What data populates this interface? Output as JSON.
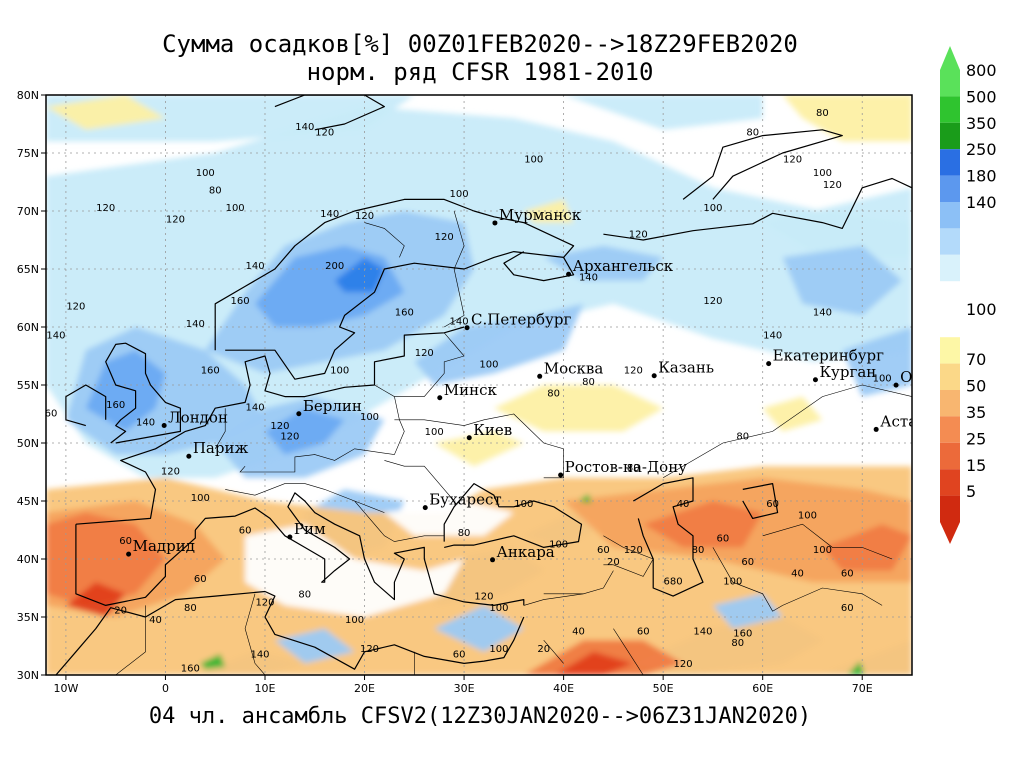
{
  "title": {
    "line1": "Сумма осадков[%] 00Z01FEB2020-->18Z29FEB2020",
    "line2": "норм. ряд CFSR 1981-2010"
  },
  "footer": "04 чл. ансамбль CFSV2(12Z30JAN2020-->06Z31JAN2020)",
  "map": {
    "lon_range": [
      -12,
      75
    ],
    "lat_range": [
      30,
      80
    ],
    "lon_ticks": [
      {
        "value": -10,
        "label": "10W"
      },
      {
        "value": 0,
        "label": "0"
      },
      {
        "value": 10,
        "label": "10E"
      },
      {
        "value": 20,
        "label": "20E"
      },
      {
        "value": 30,
        "label": "30E"
      },
      {
        "value": 40,
        "label": "40E"
      },
      {
        "value": 50,
        "label": "50E"
      },
      {
        "value": 60,
        "label": "60E"
      },
      {
        "value": 70,
        "label": "70E"
      }
    ],
    "lat_ticks": [
      {
        "value": 30,
        "label": "30N"
      },
      {
        "value": 35,
        "label": "35N"
      },
      {
        "value": 40,
        "label": "40N"
      },
      {
        "value": 45,
        "label": "45N"
      },
      {
        "value": 50,
        "label": "50N"
      },
      {
        "value": 55,
        "label": "55N"
      },
      {
        "value": 60,
        "label": "60N"
      },
      {
        "value": 65,
        "label": "65N"
      },
      {
        "value": 70,
        "label": "70N"
      },
      {
        "value": 75,
        "label": "75N"
      },
      {
        "value": 80,
        "label": "80N"
      }
    ],
    "cities": [
      {
        "name": "Мурманск",
        "lon": 33.1,
        "lat": 68.97
      },
      {
        "name": "Архангельск",
        "lon": 40.5,
        "lat": 64.55
      },
      {
        "name": "С.Петербург",
        "lon": 30.3,
        "lat": 59.94
      },
      {
        "name": "Москва",
        "lon": 37.6,
        "lat": 55.75
      },
      {
        "name": "Казань",
        "lon": 49.1,
        "lat": 55.8
      },
      {
        "name": "Екатеринбург",
        "lon": 60.6,
        "lat": 56.84
      },
      {
        "name": "Курган",
        "lon": 65.3,
        "lat": 55.45
      },
      {
        "name": "Омск",
        "lon": 73.4,
        "lat": 54.99
      },
      {
        "name": "Астана",
        "lon": 71.4,
        "lat": 51.17
      },
      {
        "name": "Минск",
        "lon": 27.56,
        "lat": 53.9
      },
      {
        "name": "Берлин",
        "lon": 13.4,
        "lat": 52.52
      },
      {
        "name": "Лондон",
        "lon": -0.13,
        "lat": 51.51
      },
      {
        "name": "Париж",
        "lon": 2.35,
        "lat": 48.86
      },
      {
        "name": "Киев",
        "lon": 30.52,
        "lat": 50.45
      },
      {
        "name": "Ростов-на-Дону",
        "lon": 39.7,
        "lat": 47.24
      },
      {
        "name": "Бухарест",
        "lon": 26.1,
        "lat": 44.43
      },
      {
        "name": "Рим",
        "lon": 12.5,
        "lat": 41.9
      },
      {
        "name": "Мадрид",
        "lon": -3.7,
        "lat": 40.42
      },
      {
        "name": "Анкара",
        "lon": 32.86,
        "lat": 39.93
      }
    ],
    "contour_labels": [
      {
        "text": "140",
        "lon": 14,
        "lat": 77
      },
      {
        "text": "120",
        "lon": 16,
        "lat": 76.5
      },
      {
        "text": "100",
        "lon": 4,
        "lat": 73
      },
      {
        "text": "80",
        "lon": 5,
        "lat": 71.5
      },
      {
        "text": "100",
        "lon": 7,
        "lat": 70
      },
      {
        "text": "120",
        "lon": -6,
        "lat": 70
      },
      {
        "text": "120",
        "lon": 1,
        "lat": 69
      },
      {
        "text": "100",
        "lon": 29.5,
        "lat": 71.2
      },
      {
        "text": "140",
        "lon": 16.5,
        "lat": 69.5
      },
      {
        "text": "120",
        "lon": 20,
        "lat": 69.3
      },
      {
        "text": "100",
        "lon": 37,
        "lat": 74.2
      },
      {
        "text": "80",
        "lon": 66,
        "lat": 78.2
      },
      {
        "text": "80",
        "lon": 59,
        "lat": 76.5
      },
      {
        "text": "120",
        "lon": 63,
        "lat": 74.2
      },
      {
        "text": "100",
        "lon": 66,
        "lat": 73
      },
      {
        "text": "120",
        "lon": 67,
        "lat": 72
      },
      {
        "text": "100",
        "lon": 55,
        "lat": 70
      },
      {
        "text": "120",
        "lon": 47.5,
        "lat": 67.7
      },
      {
        "text": "140",
        "lon": 9,
        "lat": 65
      },
      {
        "text": "200",
        "lon": 17,
        "lat": 65
      },
      {
        "text": "160",
        "lon": 7.5,
        "lat": 62
      },
      {
        "text": "120",
        "lon": -9,
        "lat": 61.5
      },
      {
        "text": "140",
        "lon": 3,
        "lat": 60
      },
      {
        "text": "140",
        "lon": -11,
        "lat": 59
      },
      {
        "text": "160",
        "lon": 24,
        "lat": 61
      },
      {
        "text": "140",
        "lon": 29.5,
        "lat": 60.2
      },
      {
        "text": "140",
        "lon": 42.5,
        "lat": 64
      },
      {
        "text": "120",
        "lon": 28,
        "lat": 67.5
      },
      {
        "text": "120",
        "lon": 55,
        "lat": 62
      },
      {
        "text": "140",
        "lon": 61,
        "lat": 59
      },
      {
        "text": "140",
        "lon": 66,
        "lat": 61
      },
      {
        "text": "160",
        "lon": 4.5,
        "lat": 56
      },
      {
        "text": "100",
        "lon": 17.5,
        "lat": 56
      },
      {
        "text": "120",
        "lon": 26,
        "lat": 57.5
      },
      {
        "text": "120",
        "lon": 47,
        "lat": 56
      },
      {
        "text": "80",
        "lon": 39,
        "lat": 54
      },
      {
        "text": "100",
        "lon": 32.5,
        "lat": 56.5
      },
      {
        "text": "160",
        "lon": -5,
        "lat": 53
      },
      {
        "text": "140",
        "lon": -2,
        "lat": 51.5
      },
      {
        "text": "120",
        "lon": 11.5,
        "lat": 51.2
      },
      {
        "text": "140",
        "lon": 9,
        "lat": 52.8
      },
      {
        "text": "100",
        "lon": 20.5,
        "lat": 52
      },
      {
        "text": "120",
        "lon": 12.5,
        "lat": 50.3
      },
      {
        "text": "100",
        "lon": 27,
        "lat": 50.7
      },
      {
        "text": "80",
        "lon": 58,
        "lat": 50.3
      },
      {
        "text": "80",
        "lon": 47,
        "lat": 47.6
      },
      {
        "text": "120",
        "lon": 0.5,
        "lat": 47.3
      },
      {
        "text": "100",
        "lon": 3.5,
        "lat": 45
      },
      {
        "text": "60",
        "lon": 8,
        "lat": 42.2
      },
      {
        "text": "100",
        "lon": 36,
        "lat": 44.5
      },
      {
        "text": "80",
        "lon": 30,
        "lat": 42
      },
      {
        "text": "100",
        "lon": 39.5,
        "lat": 41
      },
      {
        "text": "40",
        "lon": 52,
        "lat": 44.5
      },
      {
        "text": "60",
        "lon": 61,
        "lat": 44.5
      },
      {
        "text": "100",
        "lon": 64.5,
        "lat": 43.5
      },
      {
        "text": "60",
        "lon": 56,
        "lat": 41.5
      },
      {
        "text": "80",
        "lon": 53.5,
        "lat": 40.5
      },
      {
        "text": "100",
        "lon": 66,
        "lat": 40.5
      },
      {
        "text": "60",
        "lon": 58.5,
        "lat": 39.5
      },
      {
        "text": "40",
        "lon": 63.5,
        "lat": 38.5
      },
      {
        "text": "60",
        "lon": 68.5,
        "lat": 38.5
      },
      {
        "text": "60",
        "lon": 44,
        "lat": 40.5
      },
      {
        "text": "20",
        "lon": 45,
        "lat": 39.5
      },
      {
        "text": "120",
        "lon": 47,
        "lat": 40.5
      },
      {
        "text": "680",
        "lon": 51,
        "lat": 37.8
      },
      {
        "text": "100",
        "lon": 57,
        "lat": 37.8
      },
      {
        "text": "60",
        "lon": -4,
        "lat": 41.3
      },
      {
        "text": "60",
        "lon": 3.5,
        "lat": 38
      },
      {
        "text": "80",
        "lon": 2.5,
        "lat": 35.5
      },
      {
        "text": "40",
        "lon": -1,
        "lat": 34.5
      },
      {
        "text": "20",
        "lon": -4.5,
        "lat": 35.3
      },
      {
        "text": "120",
        "lon": 10,
        "lat": 36
      },
      {
        "text": "80",
        "lon": 14,
        "lat": 36.7
      },
      {
        "text": "100",
        "lon": 19,
        "lat": 34.5
      },
      {
        "text": "120",
        "lon": 32,
        "lat": 36.5
      },
      {
        "text": "100",
        "lon": 33.5,
        "lat": 35.5
      },
      {
        "text": "160",
        "lon": 2.5,
        "lat": 30.3
      },
      {
        "text": "140",
        "lon": 9.5,
        "lat": 31.5
      },
      {
        "text": "120",
        "lon": 20.5,
        "lat": 32
      },
      {
        "text": "60",
        "lon": 29.5,
        "lat": 31.5
      },
      {
        "text": "100",
        "lon": 33.5,
        "lat": 32
      },
      {
        "text": "20",
        "lon": 38,
        "lat": 32
      },
      {
        "text": "40",
        "lon": 41.5,
        "lat": 33.5
      },
      {
        "text": "60",
        "lon": 48,
        "lat": 33.5
      },
      {
        "text": "140",
        "lon": 54,
        "lat": 33.5
      },
      {
        "text": "160",
        "lon": 58,
        "lat": 33.3
      },
      {
        "text": "80",
        "lon": 57.5,
        "lat": 32.5
      },
      {
        "text": "120",
        "lon": 52,
        "lat": 30.7
      },
      {
        "text": "60",
        "lon": 68.5,
        "lat": 35.5
      },
      {
        "text": "100",
        "lon": 72,
        "lat": 55.3
      },
      {
        "text": "60",
        "lon": -11.5,
        "lat": 52.3
      },
      {
        "text": "80",
        "lon": 42.5,
        "lat": 55
      }
    ],
    "fill_colors": {
      "very_high": "#2a7ee8",
      "high": "#6aa9f2",
      "mid_high": "#9ccaf6",
      "above": "#c8ebf9",
      "normal": "#ffffff",
      "below": "#fdf0a4",
      "low": "#f9c57a",
      "lower": "#f6a35e",
      "very_low": "#f07b42",
      "extreme_low": "#e0401c",
      "green": "#33b533"
    }
  },
  "colorbar": {
    "upper": [
      {
        "color": "#5ae15a",
        "label": "800"
      },
      {
        "color": "#2fc42f",
        "label": "500"
      },
      {
        "color": "#1a9c1a",
        "label": "350"
      },
      {
        "color": "#2a6fe3",
        "label": "250"
      },
      {
        "color": "#5c98ee",
        "label": "180"
      },
      {
        "color": "#8cc0f6",
        "label": "140"
      },
      {
        "color": "#b3dafa",
        "label": ""
      },
      {
        "color": "#d9f2fb",
        "label": ""
      }
    ],
    "middle_label": "100",
    "lower": [
      {
        "color": "#fdf7a6",
        "label": "70"
      },
      {
        "color": "#fbd888",
        "label": "50"
      },
      {
        "color": "#f8b670",
        "label": "35"
      },
      {
        "color": "#f48c52",
        "label": "25"
      },
      {
        "color": "#ec6a3a",
        "label": "15"
      },
      {
        "color": "#e04420",
        "label": "5"
      },
      {
        "color": "#d02a10",
        "label": ""
      }
    ],
    "top_arrow_color": "#5ae15a",
    "bottom_arrow_color": "#d02a10"
  }
}
